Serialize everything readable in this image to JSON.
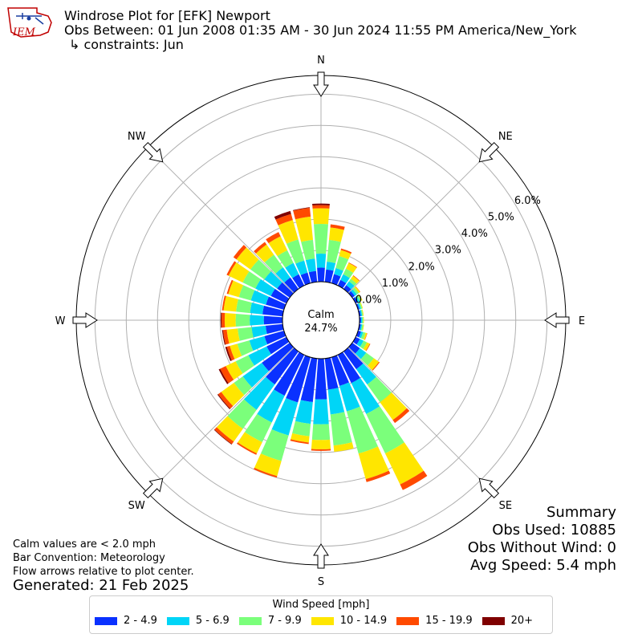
{
  "logo": {
    "text": "IEM"
  },
  "header": {
    "title": "Windrose Plot for [EFK] Newport",
    "subtitle": "Obs Between: 01 Jun 2008 01:35 AM - 30 Jun 2024 11:55 PM America/New_York",
    "constraints": "↳ constraints: Jun"
  },
  "footer": {
    "calm_note": "Calm values are < 2.0 mph",
    "convention": "Bar Convention: Meteorology",
    "flow_note": "Flow arrows relative to plot center.",
    "generated": "Generated: 21 Feb 2025"
  },
  "summary": {
    "title": "Summary",
    "obs_used": "Obs Used: 10885",
    "obs_without_wind": "Obs Without Wind: 0",
    "avg_speed": "Avg Speed: 5.4 mph"
  },
  "chart_data": {
    "type": "windrose",
    "calm_label": "Calm",
    "calm_value": "24.7%",
    "direction_labels": [
      "N",
      "NE",
      "E",
      "SE",
      "S",
      "SW",
      "W",
      "NW"
    ],
    "radial_ticks": [
      "0.0%",
      "1.0%",
      "2.0%",
      "3.0%",
      "4.0%",
      "5.0%",
      "6.0%"
    ],
    "radial_max": 6.6,
    "legend_title": "Wind Speed [mph]",
    "bins": [
      {
        "label": "2 - 4.9",
        "color": "#0a31ff"
      },
      {
        "label": "5 - 6.9",
        "color": "#00d5f7"
      },
      {
        "label": "7 - 9.9",
        "color": "#7bff7b"
      },
      {
        "label": "10 - 14.9",
        "color": "#ffe600"
      },
      {
        "label": "15 - 19.9",
        "color": "#ff4a00"
      },
      {
        "label": "20+",
        "color": "#7f0000"
      }
    ],
    "directions_deg": [
      0,
      10,
      20,
      30,
      40,
      50,
      60,
      70,
      80,
      90,
      100,
      110,
      120,
      130,
      140,
      150,
      160,
      170,
      180,
      190,
      200,
      210,
      220,
      230,
      240,
      250,
      260,
      270,
      280,
      290,
      300,
      310,
      320,
      330,
      340,
      350
    ],
    "values": [
      [
        0.45,
        0.9,
        1.85,
        2.35,
        2.45,
        2.5
      ],
      [
        0.4,
        0.65,
        1.35,
        1.75,
        1.85,
        1.85
      ],
      [
        0.3,
        0.5,
        0.9,
        1.1,
        1.15,
        1.15
      ],
      [
        0.2,
        0.4,
        0.6,
        0.8,
        0.82,
        0.82
      ],
      [
        0.15,
        0.3,
        0.4,
        0.52,
        0.54,
        0.54
      ],
      [
        0.1,
        0.18,
        0.26,
        0.31,
        0.32,
        0.32
      ],
      [
        0.08,
        0.14,
        0.2,
        0.24,
        0.24,
        0.24
      ],
      [
        0.05,
        0.1,
        0.14,
        0.16,
        0.16,
        0.16
      ],
      [
        0.05,
        0.09,
        0.12,
        0.14,
        0.14,
        0.14
      ],
      [
        0.05,
        0.09,
        0.12,
        0.14,
        0.14,
        0.14
      ],
      [
        0.05,
        0.09,
        0.13,
        0.15,
        0.15,
        0.15
      ],
      [
        0.1,
        0.17,
        0.25,
        0.3,
        0.31,
        0.31
      ],
      [
        0.15,
        0.28,
        0.4,
        0.5,
        0.52,
        0.52
      ],
      [
        0.3,
        0.55,
        0.85,
        1.05,
        1.08,
        1.08
      ],
      [
        0.7,
        1.3,
        2.0,
        2.7,
        2.82,
        2.82
      ],
      [
        1.0,
        2.1,
        3.5,
        4.6,
        4.8,
        4.8
      ],
      [
        0.95,
        1.8,
        3.2,
        4.05,
        4.15,
        4.15
      ],
      [
        1.0,
        1.8,
        2.8,
        3.0,
        3.0,
        3.0
      ],
      [
        1.3,
        2.1,
        2.6,
        2.9,
        2.95,
        2.95
      ],
      [
        1.4,
        2.1,
        2.5,
        2.7,
        2.75,
        2.75
      ],
      [
        1.5,
        2.6,
        3.45,
        3.95,
        4.0,
        4.0
      ],
      [
        1.45,
        2.4,
        3.1,
        3.5,
        3.55,
        3.55
      ],
      [
        1.3,
        2.3,
        3.05,
        3.55,
        3.65,
        3.67
      ],
      [
        1.1,
        1.85,
        2.2,
        2.7,
        2.82,
        2.85
      ],
      [
        0.7,
        1.35,
        1.8,
        2.15,
        2.35,
        2.4
      ],
      [
        0.65,
        1.15,
        1.55,
        1.8,
        1.9,
        1.95
      ],
      [
        0.55,
        1.0,
        1.45,
        1.8,
        1.92,
        1.95
      ],
      [
        0.6,
        1.05,
        1.5,
        1.85,
        1.95,
        1.98
      ],
      [
        0.65,
        1.05,
        1.5,
        1.9,
        1.95,
        1.95
      ],
      [
        0.6,
        1.1,
        1.5,
        1.85,
        1.9,
        1.9
      ],
      [
        0.55,
        1.1,
        1.55,
        2.05,
        2.12,
        2.12
      ],
      [
        0.5,
        1.0,
        1.55,
        2.1,
        2.22,
        2.22
      ],
      [
        0.45,
        0.85,
        1.35,
        1.75,
        1.85,
        1.85
      ],
      [
        0.4,
        0.8,
        1.25,
        1.75,
        1.9,
        1.9
      ],
      [
        0.35,
        0.75,
        1.45,
        2.1,
        2.3,
        2.4
      ],
      [
        0.35,
        0.75,
        1.35,
        2.1,
        2.38,
        2.4
      ]
    ]
  }
}
